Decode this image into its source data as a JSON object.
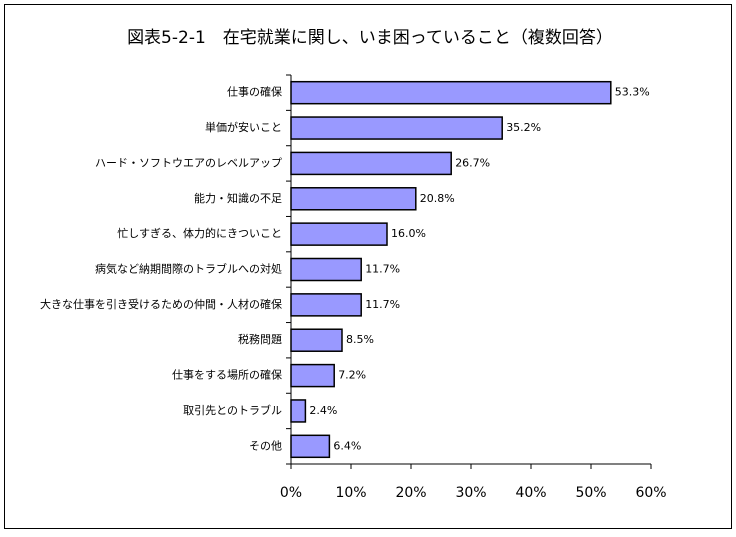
{
  "chart_data": {
    "type": "bar",
    "orientation": "horizontal",
    "title": "図表5-2-1　在宅就業に関し、いま困っていること（複数回答）",
    "categories": [
      "仕事の確保",
      "単価が安いこと",
      "ハード・ソフトウエアのレベルアップ",
      "能力・知識の不足",
      "忙しすぎる、体力的にきついこと",
      "病気など納期間際のトラブルへの対処",
      "大きな仕事を引き受けるための仲間・人材の確保",
      "税務問題",
      "仕事をする場所の確保",
      "取引先とのトラブル",
      "その他"
    ],
    "values": [
      53.3,
      35.2,
      26.7,
      20.8,
      16.0,
      11.7,
      11.7,
      8.5,
      7.2,
      2.4,
      6.4
    ],
    "value_labels": [
      "53.3%",
      "35.2%",
      "26.7%",
      "20.8%",
      "16.0%",
      "11.7%",
      "11.7%",
      "8.5%",
      "7.2%",
      "2.4%",
      "6.4%"
    ],
    "color": "#9999ff",
    "xlim": [
      0,
      60
    ],
    "xticks": [
      {
        "value": 0,
        "label": "0%"
      },
      {
        "value": 10,
        "label": "10%"
      },
      {
        "value": 20,
        "label": "20%"
      },
      {
        "value": 30,
        "label": "30%"
      },
      {
        "value": 40,
        "label": "40%"
      },
      {
        "value": 50,
        "label": "50%"
      },
      {
        "value": 60,
        "label": "60%"
      }
    ]
  }
}
